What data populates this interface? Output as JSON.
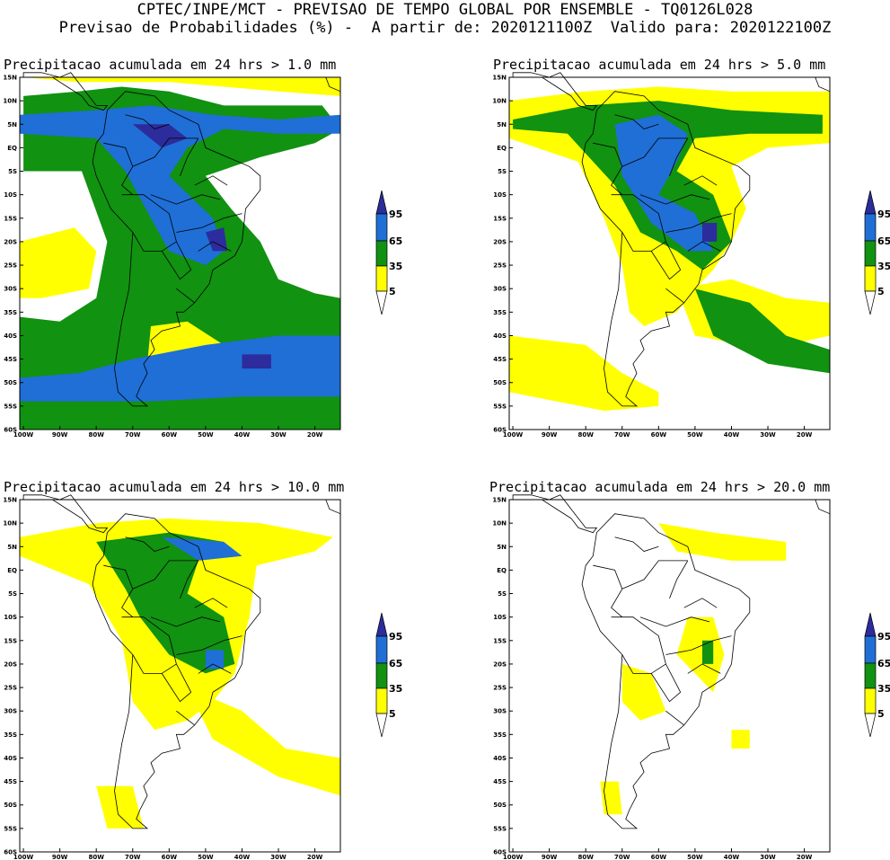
{
  "header": {
    "line1": "CPTEC/INPE/MCT - PREVISAO DE TEMPO GLOBAL POR ENSEMBLE - TQ0126L028",
    "line2": "Previsao de Probabilidades (%) -  A partir de: 2020121100Z  Valido para: 2020122100Z"
  },
  "colors": {
    "yellow": "#ffff00",
    "green": "#119211",
    "blue": "#1f6fd6",
    "purple": "#2c2c9c",
    "land_border": "#000000"
  },
  "lat_labels": [
    "15N",
    "10N",
    "5N",
    "EQ",
    "5S",
    "10S",
    "15S",
    "20S",
    "25S",
    "30S",
    "35S",
    "40S",
    "45S",
    "50S",
    "55S",
    "60S"
  ],
  "lon_labels": [
    "100W",
    "90W",
    "80W",
    "70W",
    "60W",
    "50W",
    "40W",
    "30W",
    "20W"
  ],
  "colorbar": {
    "labels": [
      "95",
      "65",
      "35",
      "5"
    ]
  },
  "panels": [
    {
      "title": "Precipitacao acumulada em 24 hrs > 1.0 mm"
    },
    {
      "title": "Precipitacao acumulada em 24 hrs > 5.0 mm"
    },
    {
      "title": "Precipitacao acumulada em 24 hrs > 10.0 mm"
    },
    {
      "title": "Precipitacao acumulada em 24 hrs > 20.0 mm"
    }
  ]
}
